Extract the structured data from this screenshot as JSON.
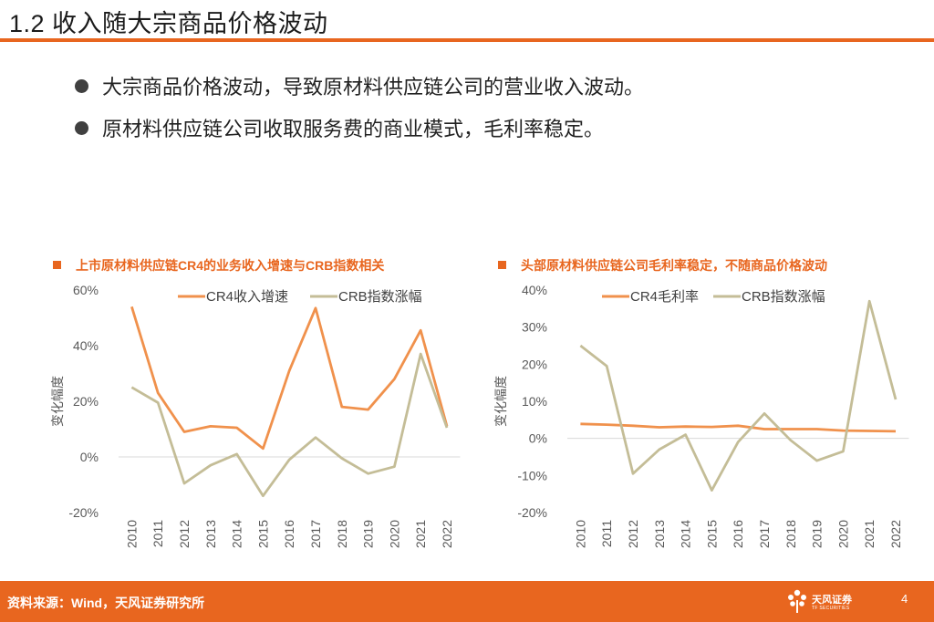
{
  "slide": {
    "title": "1.2 收入随大宗商品价格波动",
    "bullets": [
      "大宗商品价格波动，导致原材料供应链公司的营业收入波动。",
      "原材料供应链公司收取服务费的商业模式，毛利率稳定。"
    ],
    "source": "资料来源：Wind，天风证券研究所",
    "page_number": "4",
    "logo_name": "天风证券",
    "logo_sub": "TF SECURITIES"
  },
  "colors": {
    "accent": "#e8661f",
    "series_orange": "#f0914c",
    "series_khaki": "#c4bd97",
    "axis": "#d9d9d9",
    "tick": "#595959"
  },
  "chart_data": [
    {
      "type": "line",
      "title": "上市原材料供应链CR4的业务收入增速与CRB指数相关",
      "x": [
        "2010",
        "2011",
        "2012",
        "2013",
        "2014",
        "2015",
        "2016",
        "2017",
        "2018",
        "2019",
        "2020",
        "2021",
        "2022"
      ],
      "ylabel": "变化幅度",
      "ylim": [
        -0.2,
        0.6
      ],
      "yticks": [
        "60%",
        "40%",
        "20%",
        "0%",
        "-20%"
      ],
      "grid": false,
      "legend": "top",
      "series": [
        {
          "name": "CR4收入增速",
          "values": [
            0.54,
            0.23,
            0.09,
            0.11,
            0.105,
            0.03,
            0.31,
            0.535,
            0.18,
            0.17,
            0.28,
            0.455,
            0.11
          ]
        },
        {
          "name": "CRB指数涨幅",
          "values": [
            0.25,
            0.195,
            -0.095,
            -0.03,
            0.01,
            -0.14,
            -0.01,
            0.07,
            -0.005,
            -0.06,
            -0.035,
            0.37,
            0.105
          ]
        }
      ]
    },
    {
      "type": "line",
      "title": "头部原材料供应链公司毛利率稳定，不随商品价格波动",
      "x": [
        "2010",
        "2011",
        "2012",
        "2013",
        "2014",
        "2015",
        "2016",
        "2017",
        "2018",
        "2019",
        "2020",
        "2021",
        "2022"
      ],
      "ylabel": "变化幅度",
      "ylim": [
        -0.2,
        0.4
      ],
      "yticks": [
        "40%",
        "30%",
        "20%",
        "10%",
        "0%",
        "-10%",
        "-20%"
      ],
      "grid": false,
      "legend": "top",
      "series": [
        {
          "name": "CR4毛利率",
          "values": [
            0.039,
            0.037,
            0.034,
            0.03,
            0.032,
            0.031,
            0.034,
            0.025,
            0.025,
            0.025,
            0.021,
            0.02,
            0.019
          ]
        },
        {
          "name": "CRB指数涨幅",
          "values": [
            0.25,
            0.195,
            -0.095,
            -0.03,
            0.01,
            -0.14,
            -0.01,
            0.067,
            -0.005,
            -0.06,
            -0.035,
            0.37,
            0.105
          ]
        }
      ]
    }
  ]
}
